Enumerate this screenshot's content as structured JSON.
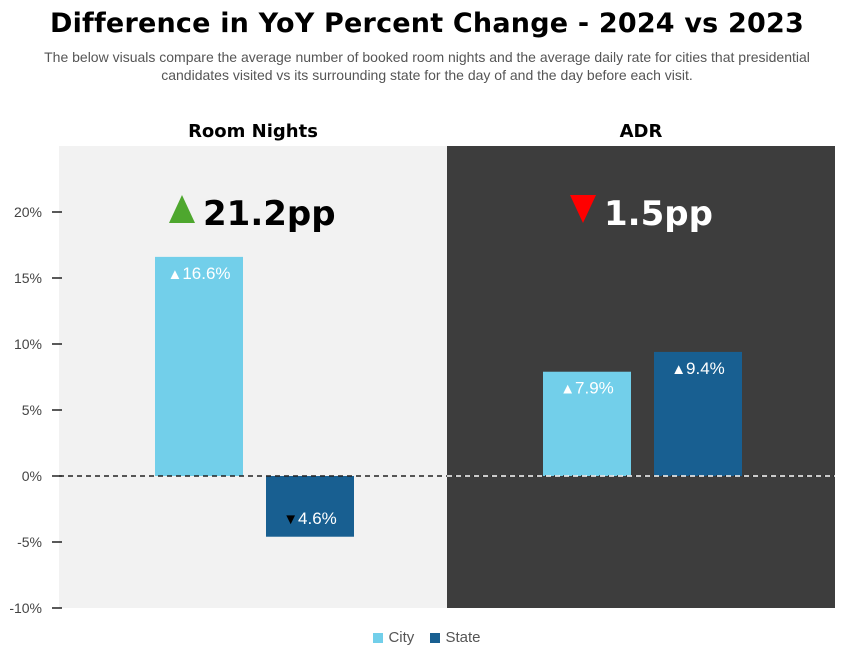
{
  "title": "Difference in YoY Percent Change - 2024 vs 2023",
  "subtitle": "The below visuals compare the average number of booked room nights and the average daily rate for cities that presidential candidates visited vs its surrounding state for the day of and the day before each visit.",
  "colors": {
    "city": "#72cfea",
    "state": "#185f91",
    "panel_light": "#f2f2f2",
    "panel_dark": "#3d3d3d",
    "up_arrow": "#4ea72e",
    "down_arrow": "#ff0000"
  },
  "chart_data": {
    "type": "bar",
    "title": "Difference in YoY Percent Change - 2024 vs 2023",
    "ylim": [
      -10,
      25
    ],
    "yticks": [
      20,
      15,
      10,
      5,
      0,
      -5,
      -10
    ],
    "ytick_labels": [
      "20%",
      "15%",
      "10%",
      "5%",
      "0%",
      "-5%",
      "-10%"
    ],
    "legend_position": "bottom",
    "series_names": [
      "City",
      "State"
    ],
    "panels": [
      {
        "title": "Room Nights",
        "headline": "21.2pp",
        "headline_direction": "up",
        "theme": "light",
        "bars": [
          {
            "series": "City",
            "value": 16.6,
            "label": "16.6%",
            "direction": "up"
          },
          {
            "series": "State",
            "value": -4.6,
            "label": "4.6%",
            "direction": "down"
          }
        ]
      },
      {
        "title": "ADR",
        "headline": "1.5pp",
        "headline_direction": "down",
        "theme": "dark",
        "bars": [
          {
            "series": "City",
            "value": 7.9,
            "label": "7.9%",
            "direction": "up"
          },
          {
            "series": "State",
            "value": 9.4,
            "label": "9.4%",
            "direction": "up"
          }
        ]
      }
    ]
  }
}
